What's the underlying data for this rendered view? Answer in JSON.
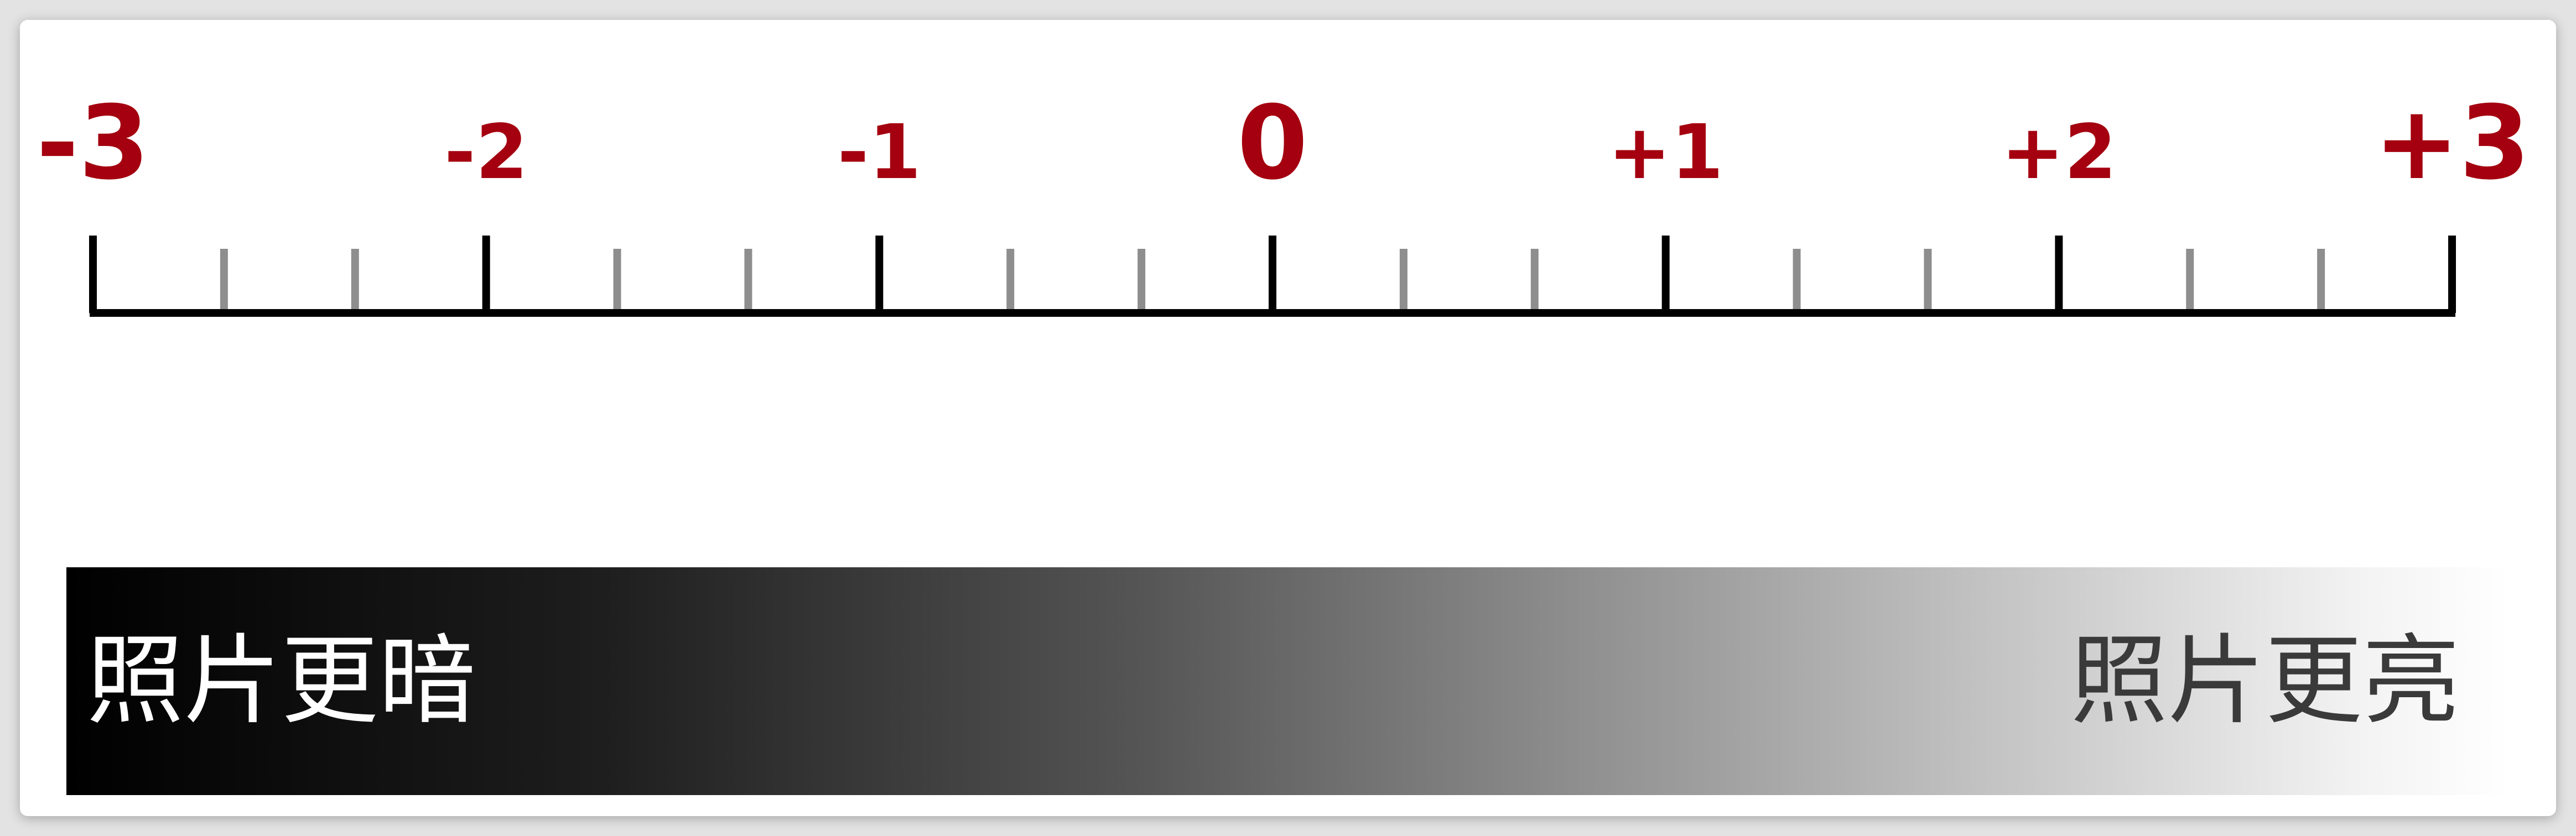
{
  "scale": {
    "labels": [
      "-3",
      "-2",
      "-1",
      "0",
      "+1",
      "+2",
      "+3"
    ],
    "values": [
      -3,
      -2,
      -1,
      0,
      1,
      2,
      3
    ],
    "minor_ticks_per_unit": 2,
    "label_color": "#a4000f",
    "major_tick_color": "#000000",
    "minor_tick_color": "#8e8e8e"
  },
  "gradient": {
    "left_label": "照片更暗",
    "right_label": "照片更亮",
    "left_label_color": "#ffffff",
    "right_label_color": "#3a3a3a",
    "start_color": "#000000",
    "end_color": "#ffffff"
  }
}
